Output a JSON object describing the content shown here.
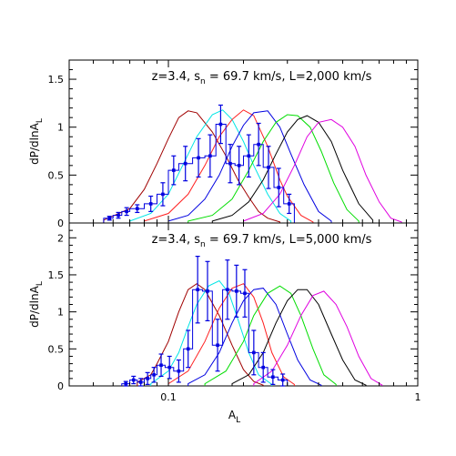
{
  "chart_data": [
    {
      "type": "line",
      "title": "z=3.4, s_n = 69.7 km/s, L=2,000 km/s",
      "title_parts": {
        "a": "z=3.4, s",
        "sub": "n",
        "b": " = 69.7 km/s, L=2,000 km/s"
      },
      "ylabel": "dP/dlnA_L",
      "ylabel_parts": {
        "main": "dP/dlnA",
        "sub": "L"
      },
      "xlabel": "",
      "x_scale": "log",
      "xlim": [
        0.04,
        1
      ],
      "ylim": [
        0,
        1.7
      ],
      "y_ticks": [
        0,
        0.5,
        1,
        1.5
      ],
      "y_tick_labels": [
        "0",
        "0.5",
        "1",
        "1.5"
      ],
      "x_ticks": [
        0.1,
        1
      ],
      "x_tick_labels": [
        "",
        ""
      ],
      "series": [
        {
          "color": "#a00000",
          "x": [
            0.055,
            0.07,
            0.08,
            0.09,
            0.1,
            0.11,
            0.12,
            0.13,
            0.15,
            0.17,
            0.19,
            0.21,
            0.23,
            0.25,
            0.28
          ],
          "y": [
            0.03,
            0.15,
            0.35,
            0.62,
            0.88,
            1.1,
            1.17,
            1.15,
            0.95,
            0.7,
            0.45,
            0.27,
            0.12,
            0.05,
            0.01
          ]
        },
        {
          "color": "#00e5e5",
          "x": [
            0.07,
            0.085,
            0.1,
            0.115,
            0.13,
            0.15,
            0.165,
            0.18,
            0.2,
            0.22,
            0.25,
            0.28,
            0.31
          ],
          "y": [
            0.02,
            0.1,
            0.3,
            0.62,
            0.9,
            1.13,
            1.18,
            1.08,
            0.85,
            0.6,
            0.3,
            0.1,
            0.02
          ]
        },
        {
          "color": "#ff2020",
          "x": [
            0.08,
            0.1,
            0.12,
            0.14,
            0.16,
            0.18,
            0.2,
            0.22,
            0.25,
            0.28,
            0.3,
            0.34,
            0.38
          ],
          "y": [
            0.02,
            0.1,
            0.3,
            0.6,
            0.9,
            1.08,
            1.18,
            1.12,
            0.8,
            0.45,
            0.28,
            0.08,
            0.01
          ]
        },
        {
          "color": "#0000e0",
          "x": [
            0.1,
            0.12,
            0.14,
            0.16,
            0.18,
            0.2,
            0.22,
            0.25,
            0.28,
            0.31,
            0.35,
            0.4,
            0.45
          ],
          "y": [
            0.02,
            0.08,
            0.25,
            0.5,
            0.8,
            1.02,
            1.15,
            1.17,
            1.0,
            0.72,
            0.4,
            0.12,
            0.02
          ]
        },
        {
          "color": "#00dd00",
          "x": [
            0.12,
            0.15,
            0.18,
            0.21,
            0.24,
            0.27,
            0.3,
            0.33,
            0.37,
            0.41,
            0.46,
            0.52,
            0.58
          ],
          "y": [
            0.02,
            0.08,
            0.25,
            0.55,
            0.85,
            1.05,
            1.13,
            1.12,
            1.0,
            0.75,
            0.42,
            0.14,
            0.02
          ]
        },
        {
          "color": "#000000",
          "x": [
            0.15,
            0.18,
            0.21,
            0.24,
            0.27,
            0.3,
            0.33,
            0.36,
            0.4,
            0.45,
            0.5,
            0.58,
            0.66
          ],
          "y": [
            0.02,
            0.08,
            0.22,
            0.45,
            0.72,
            0.95,
            1.08,
            1.12,
            1.05,
            0.85,
            0.55,
            0.2,
            0.03
          ]
        },
        {
          "color": "#e000e0",
          "x": [
            0.2,
            0.24,
            0.28,
            0.32,
            0.36,
            0.4,
            0.45,
            0.5,
            0.56,
            0.62,
            0.7,
            0.78,
            0.86
          ],
          "y": [
            0.02,
            0.1,
            0.3,
            0.6,
            0.9,
            1.05,
            1.08,
            1.0,
            0.8,
            0.5,
            0.22,
            0.05,
            0.01
          ]
        }
      ],
      "histogram": {
        "color": "#0000e0",
        "edges": [
          0.055,
          0.06,
          0.065,
          0.07,
          0.08,
          0.09,
          0.1,
          0.11,
          0.125,
          0.14,
          0.155,
          0.17,
          0.185,
          0.2,
          0.22,
          0.24,
          0.265,
          0.29,
          0.32
        ],
        "values": [
          0.05,
          0.08,
          0.12,
          0.15,
          0.2,
          0.3,
          0.55,
          0.62,
          0.68,
          0.7,
          1.03,
          0.62,
          0.6,
          0.7,
          0.82,
          0.58,
          0.37,
          0.2
        ]
      },
      "points": {
        "color": "#0000e0",
        "x": [
          0.058,
          0.063,
          0.068,
          0.075,
          0.085,
          0.095,
          0.105,
          0.117,
          0.132,
          0.147,
          0.162,
          0.177,
          0.192,
          0.21,
          0.23,
          0.252,
          0.277,
          0.305
        ],
        "y": [
          0.05,
          0.08,
          0.12,
          0.15,
          0.2,
          0.3,
          0.55,
          0.62,
          0.68,
          0.7,
          1.03,
          0.62,
          0.6,
          0.7,
          0.82,
          0.58,
          0.37,
          0.2
        ],
        "err": [
          0.02,
          0.03,
          0.04,
          0.04,
          0.08,
          0.12,
          0.15,
          0.18,
          0.2,
          0.22,
          0.2,
          0.2,
          0.2,
          0.22,
          0.22,
          0.22,
          0.2,
          0.1
        ]
      }
    },
    {
      "type": "line",
      "title": "z=3.4, s_n = 69.7 km/s, L=5,000 km/s",
      "title_parts": {
        "a": "z=3.4, s",
        "sub": "n",
        "b": " = 69.7 km/s, L=5,000 km/s"
      },
      "ylabel": "dP/dlnA_L",
      "ylabel_parts": {
        "main": "dP/dlnA",
        "sub": "L"
      },
      "xlabel": "A_L",
      "xlabel_parts": {
        "main": "A",
        "sub": "L"
      },
      "x_scale": "log",
      "xlim": [
        0.04,
        1
      ],
      "ylim": [
        0,
        2.2
      ],
      "y_ticks": [
        0,
        0.5,
        1,
        1.5,
        2
      ],
      "y_tick_labels": [
        "0",
        "0.5",
        "1",
        "1.5",
        "2"
      ],
      "x_ticks": [
        0.1,
        1
      ],
      "x_tick_labels": [
        "0.1",
        "1"
      ],
      "series": [
        {
          "color": "#a00000",
          "x": [
            0.075,
            0.085,
            0.09,
            0.1,
            0.11,
            0.12,
            0.13,
            0.14,
            0.16,
            0.18,
            0.2,
            0.22,
            0.24
          ],
          "y": [
            0.05,
            0.15,
            0.3,
            0.6,
            1.0,
            1.3,
            1.38,
            1.3,
            0.95,
            0.55,
            0.22,
            0.06,
            0.01
          ]
        },
        {
          "color": "#00e5e5",
          "x": [
            0.085,
            0.1,
            0.11,
            0.12,
            0.13,
            0.145,
            0.16,
            0.175,
            0.19,
            0.21,
            0.23,
            0.26
          ],
          "y": [
            0.03,
            0.2,
            0.45,
            0.8,
            1.1,
            1.35,
            1.42,
            1.25,
            0.9,
            0.45,
            0.15,
            0.02
          ]
        },
        {
          "color": "#ff2020",
          "x": [
            0.1,
            0.12,
            0.14,
            0.16,
            0.18,
            0.2,
            0.22,
            0.24,
            0.26,
            0.29,
            0.32
          ],
          "y": [
            0.03,
            0.2,
            0.6,
            1.05,
            1.32,
            1.38,
            1.2,
            0.85,
            0.45,
            0.12,
            0.02
          ]
        },
        {
          "color": "#0000e0",
          "x": [
            0.12,
            0.14,
            0.16,
            0.18,
            0.2,
            0.22,
            0.24,
            0.27,
            0.3,
            0.33,
            0.37,
            0.41
          ],
          "y": [
            0.03,
            0.15,
            0.45,
            0.85,
            1.15,
            1.3,
            1.32,
            1.1,
            0.7,
            0.35,
            0.08,
            0.01
          ]
        },
        {
          "color": "#00dd00",
          "x": [
            0.14,
            0.17,
            0.2,
            0.22,
            0.25,
            0.28,
            0.31,
            0.34,
            0.38,
            0.42,
            0.47
          ],
          "y": [
            0.03,
            0.2,
            0.6,
            0.95,
            1.25,
            1.35,
            1.25,
            0.95,
            0.5,
            0.15,
            0.02
          ]
        },
        {
          "color": "#000000",
          "x": [
            0.18,
            0.21,
            0.24,
            0.27,
            0.3,
            0.33,
            0.36,
            0.4,
            0.45,
            0.5,
            0.56,
            0.62
          ],
          "y": [
            0.03,
            0.15,
            0.45,
            0.85,
            1.15,
            1.3,
            1.3,
            1.1,
            0.7,
            0.35,
            0.08,
            0.01
          ]
        },
        {
          "color": "#e000e0",
          "x": [
            0.22,
            0.26,
            0.3,
            0.34,
            0.38,
            0.42,
            0.47,
            0.52,
            0.58,
            0.65,
            0.72
          ],
          "y": [
            0.03,
            0.2,
            0.55,
            0.95,
            1.22,
            1.28,
            1.1,
            0.8,
            0.4,
            0.1,
            0.01
          ]
        }
      ],
      "histogram": {
        "color": "#0000e0",
        "edges": [
          0.065,
          0.07,
          0.075,
          0.08,
          0.085,
          0.09,
          0.097,
          0.105,
          0.115,
          0.125,
          0.137,
          0.15,
          0.165,
          0.18,
          0.195,
          0.21,
          0.23,
          0.25,
          0.275,
          0.3
        ],
        "values": [
          0.03,
          0.08,
          0.05,
          0.1,
          0.15,
          0.28,
          0.25,
          0.2,
          0.5,
          1.3,
          1.28,
          0.55,
          1.3,
          1.28,
          1.25,
          0.45,
          0.25,
          0.12,
          0.08
        ]
      },
      "points": {
        "color": "#0000e0",
        "x": [
          0.0675,
          0.0725,
          0.0775,
          0.0825,
          0.0875,
          0.0935,
          0.101,
          0.11,
          0.12,
          0.131,
          0.1435,
          0.1575,
          0.1725,
          0.1875,
          0.2025,
          0.22,
          0.24,
          0.2625,
          0.2875
        ],
        "y": [
          0.03,
          0.08,
          0.05,
          0.1,
          0.15,
          0.28,
          0.25,
          0.2,
          0.5,
          1.3,
          1.28,
          0.55,
          1.3,
          1.28,
          1.25,
          0.45,
          0.25,
          0.12,
          0.08
        ],
        "err": [
          0.03,
          0.05,
          0.05,
          0.08,
          0.1,
          0.15,
          0.15,
          0.15,
          0.25,
          0.45,
          0.4,
          0.35,
          0.4,
          0.35,
          0.32,
          0.3,
          0.2,
          0.1,
          0.08
        ]
      }
    }
  ]
}
